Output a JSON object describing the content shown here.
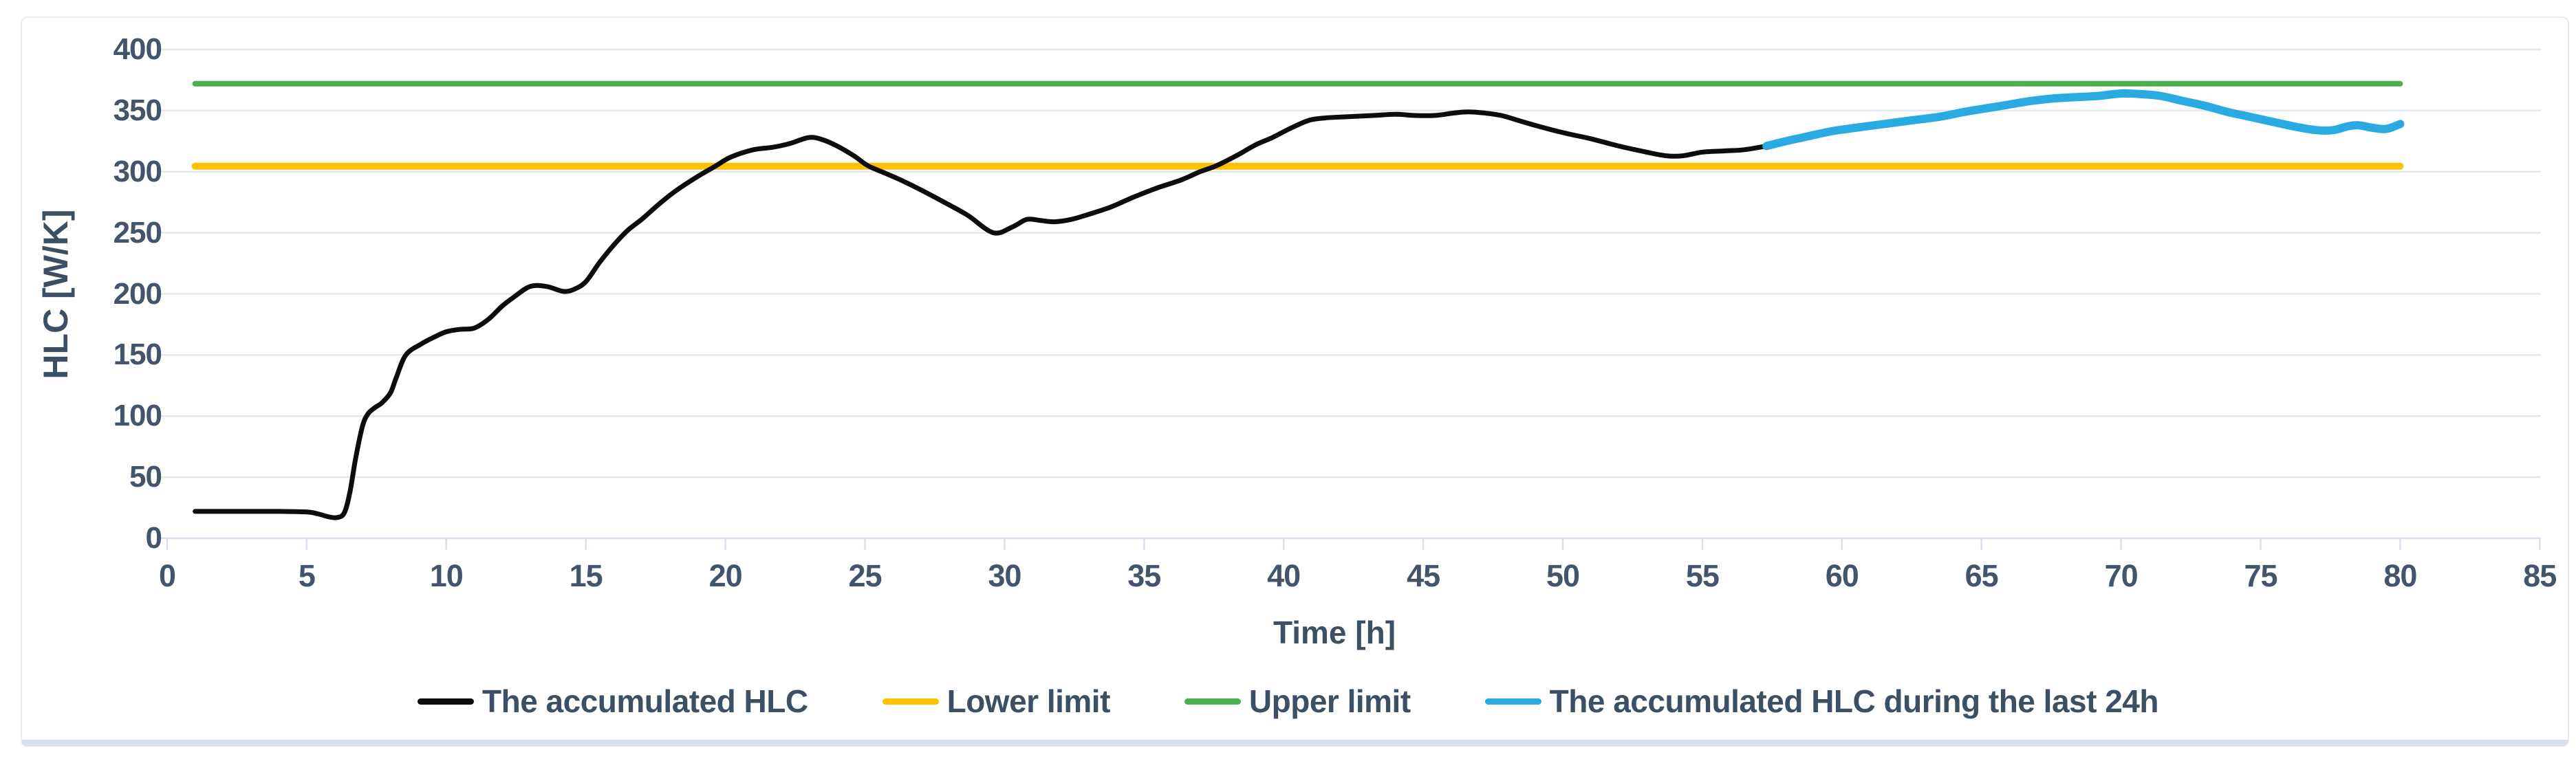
{
  "chart_data": {
    "type": "line",
    "title": "",
    "xlabel": "Time [h]",
    "ylabel": "HLC [W/K]",
    "xlim": [
      0,
      85
    ],
    "ylim": [
      0,
      400
    ],
    "x_ticks": [
      0,
      5,
      10,
      15,
      20,
      25,
      30,
      35,
      40,
      45,
      50,
      55,
      60,
      65,
      70,
      75,
      80,
      85
    ],
    "y_ticks": [
      0,
      50,
      100,
      150,
      200,
      250,
      300,
      350,
      400
    ],
    "grid": "horizontal-only",
    "legend_position": "bottom-center",
    "lower_limit_value": 304.5,
    "upper_limit_value": 372,
    "series": [
      {
        "name": "The accumulated HLC",
        "color": "#0d0d0d",
        "stroke_width": 7,
        "points": [
          [
            1,
            22
          ],
          [
            2,
            22
          ],
          [
            3,
            22
          ],
          [
            4,
            22
          ],
          [
            5,
            21.5
          ],
          [
            5.4,
            20
          ],
          [
            5.8,
            17.5
          ],
          [
            6.1,
            17
          ],
          [
            6.35,
            21
          ],
          [
            6.55,
            38
          ],
          [
            6.75,
            65
          ],
          [
            7.0,
            92
          ],
          [
            7.2,
            102
          ],
          [
            7.45,
            107
          ],
          [
            7.7,
            111
          ],
          [
            8.0,
            119
          ],
          [
            8.2,
            131
          ],
          [
            8.55,
            150
          ],
          [
            9.1,
            159
          ],
          [
            9.6,
            165
          ],
          [
            10.0,
            169
          ],
          [
            10.5,
            171
          ],
          [
            11.0,
            172
          ],
          [
            11.5,
            179
          ],
          [
            12.0,
            190
          ],
          [
            12.4,
            197
          ],
          [
            13.0,
            206
          ],
          [
            13.6,
            206
          ],
          [
            14.2,
            202
          ],
          [
            14.6,
            204
          ],
          [
            15.0,
            210
          ],
          [
            15.5,
            226
          ],
          [
            16.0,
            240
          ],
          [
            16.5,
            252
          ],
          [
            17.0,
            261
          ],
          [
            17.6,
            273
          ],
          [
            18.2,
            284
          ],
          [
            19.0,
            296
          ],
          [
            19.6,
            304
          ],
          [
            20.2,
            312
          ],
          [
            21.0,
            318
          ],
          [
            21.7,
            320
          ],
          [
            22.3,
            323
          ],
          [
            23.0,
            328
          ],
          [
            23.5,
            326
          ],
          [
            24.0,
            321
          ],
          [
            24.6,
            313
          ],
          [
            25.1,
            305
          ],
          [
            25.7,
            299
          ],
          [
            26.3,
            293
          ],
          [
            27.1,
            284
          ],
          [
            28.0,
            273
          ],
          [
            28.7,
            264
          ],
          [
            29.6,
            250
          ],
          [
            30.3,
            255
          ],
          [
            30.8,
            261
          ],
          [
            31.3,
            260
          ],
          [
            31.8,
            259
          ],
          [
            32.4,
            261
          ],
          [
            33.0,
            265
          ],
          [
            33.8,
            271
          ],
          [
            34.6,
            279
          ],
          [
            35.5,
            287
          ],
          [
            36.3,
            293
          ],
          [
            37.0,
            300
          ],
          [
            37.6,
            305
          ],
          [
            38.3,
            313
          ],
          [
            39.0,
            322
          ],
          [
            39.6,
            328
          ],
          [
            40.2,
            335
          ],
          [
            40.9,
            342
          ],
          [
            41.5,
            344
          ],
          [
            42.3,
            345
          ],
          [
            43.2,
            346
          ],
          [
            44.0,
            347
          ],
          [
            44.7,
            346
          ],
          [
            45.4,
            346
          ],
          [
            46.1,
            348
          ],
          [
            46.6,
            349
          ],
          [
            47.2,
            348
          ],
          [
            47.8,
            346
          ],
          [
            48.4,
            342
          ],
          [
            49.0,
            338
          ],
          [
            50.0,
            332
          ],
          [
            51.0,
            327
          ],
          [
            52.0,
            321
          ],
          [
            53.0,
            316
          ],
          [
            53.7,
            313
          ],
          [
            54.3,
            313
          ],
          [
            55.0,
            316
          ],
          [
            55.8,
            317
          ],
          [
            56.5,
            318
          ],
          [
            57.3,
            321
          ]
        ]
      },
      {
        "name": "Lower limit",
        "color": "#FFC000",
        "stroke_width": 10,
        "points": [
          [
            1,
            304.5
          ],
          [
            80,
            304.5
          ]
        ]
      },
      {
        "name": "Upper limit",
        "color": "#4CAF50",
        "stroke_width": 8,
        "points": [
          [
            1,
            372
          ],
          [
            80,
            372
          ]
        ]
      },
      {
        "name": "The accumulated HLC during the last 24h",
        "color": "#29ABE2",
        "stroke_width": 12,
        "points": [
          [
            57.3,
            321
          ],
          [
            58.0,
            325
          ],
          [
            58.8,
            329
          ],
          [
            59.6,
            333
          ],
          [
            60.5,
            336
          ],
          [
            61.5,
            339
          ],
          [
            62.5,
            342
          ],
          [
            63.5,
            345
          ],
          [
            64.4,
            349
          ],
          [
            65.2,
            352
          ],
          [
            66.0,
            355
          ],
          [
            66.8,
            358
          ],
          [
            67.6,
            360
          ],
          [
            68.4,
            361
          ],
          [
            69.2,
            362
          ],
          [
            70.0,
            364
          ],
          [
            70.7,
            363.5
          ],
          [
            71.4,
            362
          ],
          [
            72.2,
            358
          ],
          [
            73.0,
            354
          ],
          [
            73.8,
            349
          ],
          [
            74.6,
            345
          ],
          [
            75.4,
            341
          ],
          [
            76.2,
            337
          ],
          [
            77.0,
            334
          ],
          [
            77.6,
            334
          ],
          [
            78.1,
            337
          ],
          [
            78.5,
            338
          ],
          [
            79.0,
            336
          ],
          [
            79.5,
            335
          ],
          [
            80.0,
            339
          ]
        ]
      }
    ]
  },
  "legend": {
    "items": [
      {
        "label": "The accumulated HLC",
        "color": "#0d0d0d"
      },
      {
        "label": "Lower limit",
        "color": "#FFC000"
      },
      {
        "label": "Upper limit",
        "color": "#4CAF50"
      },
      {
        "label": "The accumulated HLC during the last 24h",
        "color": "#29ABE2"
      }
    ]
  },
  "axes": {
    "x_title": "Time [h]",
    "y_title": "HLC [W/K]"
  }
}
